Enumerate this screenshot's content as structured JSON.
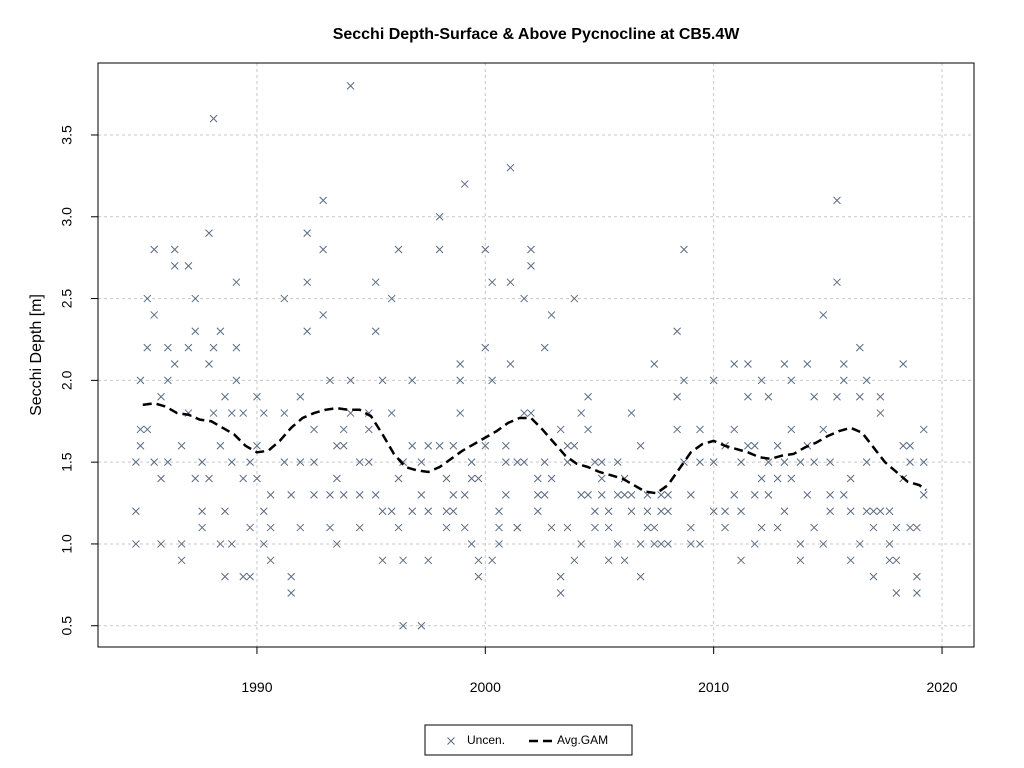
{
  "chart_data": {
    "type": "scatter",
    "title": "Secchi Depth-Surface & Above Pycnocline at CB5.4W",
    "ylabel": "Secchi Depth [m]",
    "xlim": [
      1983.04,
      2021.4
    ],
    "ylim": [
      0.37,
      3.94
    ],
    "xticks": [
      1990,
      2000,
      2010,
      2020
    ],
    "yticks": [
      0.5,
      {
        "value": 1,
        "label": "1.0"
      },
      1.5,
      {
        "value": 2,
        "label": "2.0"
      },
      2.5,
      {
        "value": 3,
        "label": "3.0"
      },
      3.5
    ],
    "grid": true,
    "legend": "bottom",
    "series": [
      {
        "name": "Uncen.",
        "color": "#5b6b82",
        "marker": "x",
        "x": [
          1984.7,
          1984.7,
          1984.7,
          1984.9,
          1984.9,
          1984.9,
          1985.2,
          1985.2,
          1985.2,
          1985.5,
          1985.5,
          1985.5,
          1985.8,
          1985.8,
          1985.8,
          1986.1,
          1986.1,
          1986.1,
          1986.4,
          1986.4,
          1986.4,
          1986.7,
          1986.7,
          1986.7,
          1987.0,
          1987.0,
          1987.0,
          1987.3,
          1987.3,
          1987.3,
          1987.6,
          1987.6,
          1987.6,
          1987.9,
          1987.9,
          1987.9,
          1988.1,
          1988.1,
          1988.1,
          1988.4,
          1988.4,
          1988.4,
          1988.6,
          1988.6,
          1988.6,
          1988.9,
          1988.9,
          1988.9,
          1989.1,
          1989.1,
          1989.1,
          1989.4,
          1989.4,
          1989.4,
          1989.7,
          1989.7,
          1989.7,
          1990.0,
          1990.0,
          1990.0,
          1990.3,
          1990.3,
          1990.3,
          1990.6,
          1990.6,
          1990.6,
          1991.2,
          1991.2,
          1991.2,
          1991.5,
          1991.5,
          1991.5,
          1991.9,
          1991.9,
          1991.9,
          1992.2,
          1992.2,
          1992.2,
          1992.5,
          1992.5,
          1992.5,
          1992.9,
          1992.9,
          1992.9,
          1993.2,
          1993.2,
          1993.2,
          1993.5,
          1993.5,
          1993.5,
          1993.8,
          1993.8,
          1993.8,
          1994.1,
          1994.1,
          1994.1,
          1994.5,
          1994.5,
          1994.5,
          1994.9,
          1994.9,
          1994.9,
          1995.2,
          1995.2,
          1995.2,
          1995.5,
          1995.5,
          1995.5,
          1995.9,
          1995.9,
          1995.9,
          1996.2,
          1996.2,
          1996.2,
          1996.4,
          1996.4,
          1996.4,
          1996.8,
          1996.8,
          1996.8,
          1997.2,
          1997.2,
          1997.2,
          1997.5,
          1997.5,
          1997.5,
          1998.0,
          1998.0,
          1998.0,
          1998.3,
          1998.3,
          1998.3,
          1998.6,
          1998.6,
          1998.6,
          1998.9,
          1998.9,
          1998.9,
          1999.1,
          1999.1,
          1999.1,
          1999.4,
          1999.4,
          1999.4,
          1999.7,
          1999.7,
          1999.7,
          2000.0,
          2000.0,
          2000.0,
          2000.3,
          2000.3,
          2000.3,
          2000.6,
          2000.6,
          2000.6,
          2000.9,
          2000.9,
          2000.9,
          2001.1,
          2001.1,
          2001.1,
          2001.4,
          2001.4,
          2001.4,
          2001.7,
          2001.7,
          2001.7,
          2002.0,
          2002.0,
          2002.0,
          2002.3,
          2002.3,
          2002.3,
          2002.6,
          2002.6,
          2002.6,
          2002.9,
          2002.9,
          2002.9,
          2003.3,
          2003.3,
          2003.3,
          2003.6,
          2003.6,
          2003.6,
          2003.9,
          2003.9,
          2003.9,
          2004.2,
          2004.2,
          2004.2,
          2004.5,
          2004.5,
          2004.5,
          2004.8,
          2004.8,
          2004.8,
          2005.1,
          2005.1,
          2005.1,
          2005.4,
          2005.4,
          2005.4,
          2005.8,
          2005.8,
          2005.8,
          2006.1,
          2006.1,
          2006.1,
          2006.4,
          2006.4,
          2006.4,
          2006.8,
          2006.8,
          2006.8,
          2007.1,
          2007.1,
          2007.1,
          2007.4,
          2007.4,
          2007.4,
          2007.7,
          2007.7,
          2007.7,
          2008.0,
          2008.0,
          2008.0,
          2008.4,
          2008.4,
          2008.4,
          2008.7,
          2008.7,
          2008.7,
          2009.0,
          2009.0,
          2009.0,
          2009.4,
          2009.4,
          2009.4,
          2010.0,
          2010.0,
          2010.0,
          2010.5,
          2010.5,
          2010.5,
          2010.9,
          2010.9,
          2010.9,
          2011.2,
          2011.2,
          2011.2,
          2011.5,
          2011.5,
          2011.5,
          2011.8,
          2011.8,
          2011.8,
          2012.1,
          2012.1,
          2012.1,
          2012.4,
          2012.4,
          2012.4,
          2012.8,
          2012.8,
          2012.8,
          2013.1,
          2013.1,
          2013.1,
          2013.4,
          2013.4,
          2013.4,
          2013.8,
          2013.8,
          2013.8,
          2014.1,
          2014.1,
          2014.1,
          2014.4,
          2014.4,
          2014.4,
          2014.8,
          2014.8,
          2014.8,
          2015.1,
          2015.1,
          2015.1,
          2015.4,
          2015.4,
          2015.4,
          2015.7,
          2015.7,
          2015.7,
          2016.0,
          2016.0,
          2016.0,
          2016.4,
          2016.4,
          2016.4,
          2016.7,
          2016.7,
          2016.7,
          2017.0,
          2017.0,
          2017.0,
          2017.3,
          2017.3,
          2017.3,
          2017.7,
          2017.7,
          2017.7,
          2018.0,
          2018.0,
          2018.0,
          2018.3,
          2018.3,
          2018.3,
          2018.6,
          2018.6,
          2018.6,
          2018.9,
          2018.9,
          2018.9,
          2019.2,
          2019.2,
          2019.2
        ],
        "values": [
          1.0,
          1.2,
          1.5,
          1.7,
          2.0,
          1.6,
          2.5,
          2.2,
          1.7,
          2.8,
          2.4,
          1.5,
          1.4,
          1.9,
          1.0,
          2.2,
          2.0,
          1.5,
          2.8,
          2.7,
          2.1,
          1.0,
          0.9,
          1.6,
          2.7,
          2.2,
          1.8,
          2.5,
          2.3,
          1.4,
          1.2,
          1.1,
          1.5,
          2.9,
          2.1,
          1.4,
          3.6,
          2.2,
          1.8,
          2.3,
          1.6,
          1.0,
          0.8,
          1.2,
          1.9,
          1.5,
          1.8,
          1.0,
          2.6,
          2.2,
          2.0,
          1.4,
          1.8,
          0.8,
          0.8,
          1.1,
          1.5,
          1.9,
          1.6,
          1.4,
          1.8,
          1.0,
          1.2,
          1.3,
          1.1,
          0.9,
          1.5,
          2.5,
          1.8,
          0.7,
          0.8,
          1.3,
          1.9,
          1.5,
          1.1,
          2.9,
          2.3,
          2.6,
          1.3,
          1.5,
          1.7,
          3.1,
          2.8,
          2.4,
          2.0,
          1.3,
          1.1,
          1.6,
          1.4,
          1.0,
          1.7,
          1.6,
          1.3,
          3.8,
          2.0,
          1.8,
          1.5,
          1.3,
          1.1,
          1.8,
          1.7,
          1.5,
          2.6,
          2.3,
          1.3,
          2.0,
          1.2,
          0.9,
          2.5,
          1.8,
          1.2,
          2.8,
          1.4,
          1.1,
          0.5,
          0.9,
          1.5,
          1.6,
          2.0,
          1.2,
          0.5,
          1.5,
          1.3,
          1.6,
          1.2,
          0.9,
          3.0,
          2.8,
          1.6,
          1.1,
          1.2,
          1.4,
          1.3,
          1.6,
          1.2,
          2.0,
          2.1,
          1.8,
          3.2,
          1.3,
          1.1,
          1.5,
          1.4,
          1.0,
          0.8,
          1.4,
          0.9,
          2.2,
          2.8,
          1.6,
          2.6,
          2.0,
          0.9,
          1.2,
          1.0,
          1.1,
          1.5,
          1.6,
          1.3,
          2.6,
          3.3,
          2.1,
          1.1,
          1.5,
          1.1,
          2.5,
          1.8,
          1.5,
          2.8,
          2.7,
          1.8,
          1.3,
          1.2,
          1.4,
          2.2,
          1.5,
          1.3,
          2.4,
          1.1,
          1.4,
          1.7,
          0.8,
          0.7,
          1.6,
          1.5,
          1.1,
          0.9,
          1.6,
          2.5,
          1.8,
          1.3,
          1.0,
          1.7,
          1.9,
          1.3,
          1.5,
          1.2,
          1.1,
          1.3,
          1.4,
          1.5,
          0.9,
          1.2,
          1.1,
          1.5,
          1.3,
          1.0,
          0.9,
          1.3,
          1.4,
          1.3,
          1.8,
          1.2,
          1.6,
          0.8,
          1.0,
          1.1,
          1.2,
          1.3,
          1.1,
          2.1,
          1.0,
          1.3,
          1.2,
          1.0,
          1.0,
          1.2,
          1.3,
          1.9,
          2.3,
          1.7,
          2.0,
          2.8,
          1.5,
          1.3,
          1.1,
          1.0,
          1.5,
          1.0,
          1.7,
          2.0,
          1.5,
          1.2,
          1.2,
          1.1,
          1.6,
          2.1,
          1.7,
          1.3,
          0.9,
          1.5,
          1.2,
          1.9,
          2.1,
          1.6,
          1.3,
          1.6,
          1.0,
          1.4,
          2.0,
          1.1,
          1.9,
          1.5,
          1.3,
          1.1,
          1.4,
          1.6,
          2.1,
          1.5,
          1.2,
          1.4,
          1.7,
          2.0,
          1.5,
          1.0,
          0.9,
          1.6,
          2.1,
          1.3,
          1.5,
          1.9,
          1.1,
          2.4,
          1.7,
          1.0,
          1.3,
          1.5,
          1.2,
          3.1,
          2.6,
          1.9,
          2.0,
          2.1,
          1.3,
          0.9,
          1.4,
          1.2,
          1.9,
          2.2,
          1.0,
          2.0,
          1.5,
          1.2,
          0.8,
          1.2,
          1.1,
          1.9,
          1.8,
          1.2,
          1.0,
          0.9,
          1.2,
          0.7,
          0.9,
          1.1,
          1.6,
          2.1,
          1.4,
          1.1,
          1.6,
          1.5,
          0.8,
          0.7,
          1.1,
          1.3,
          1.7,
          1.5
        ]
      },
      {
        "name": "Avg.GAM",
        "color": "#000000",
        "marker": "line",
        "dashed": true,
        "x": [
          1985,
          1985.5,
          1986,
          1986.5,
          1987,
          1987.5,
          1988,
          1988.5,
          1989,
          1989.5,
          1990,
          1990.5,
          1991,
          1991.5,
          1992,
          1992.5,
          1993,
          1993.5,
          1994,
          1994.5,
          1995,
          1995.5,
          1996,
          1996.5,
          1997,
          1997.5,
          1998,
          1998.5,
          1999,
          1999.5,
          2000,
          2000.5,
          2001,
          2001.5,
          2002,
          2002.5,
          2003,
          2003.5,
          2004,
          2004.5,
          2005,
          2005.5,
          2006,
          2006.5,
          2007,
          2007.5,
          2008,
          2008.5,
          2009,
          2009.5,
          2010,
          2010.5,
          2011,
          2011.5,
          2012,
          2012.5,
          2013,
          2013.5,
          2014,
          2014.5,
          2015,
          2015.5,
          2016,
          2016.5,
          2017,
          2017.5,
          2018,
          2018.5,
          2019,
          2019.3
        ],
        "values": [
          1.85,
          1.86,
          1.84,
          1.8,
          1.79,
          1.76,
          1.75,
          1.71,
          1.67,
          1.6,
          1.56,
          1.57,
          1.63,
          1.71,
          1.77,
          1.8,
          1.82,
          1.83,
          1.82,
          1.82,
          1.78,
          1.67,
          1.55,
          1.47,
          1.45,
          1.44,
          1.47,
          1.52,
          1.57,
          1.61,
          1.65,
          1.69,
          1.74,
          1.77,
          1.77,
          1.7,
          1.62,
          1.54,
          1.49,
          1.47,
          1.44,
          1.42,
          1.4,
          1.36,
          1.32,
          1.31,
          1.36,
          1.46,
          1.56,
          1.61,
          1.63,
          1.6,
          1.58,
          1.56,
          1.53,
          1.52,
          1.54,
          1.55,
          1.59,
          1.62,
          1.66,
          1.69,
          1.71,
          1.68,
          1.59,
          1.5,
          1.44,
          1.38,
          1.36,
          1.33
        ]
      }
    ]
  }
}
